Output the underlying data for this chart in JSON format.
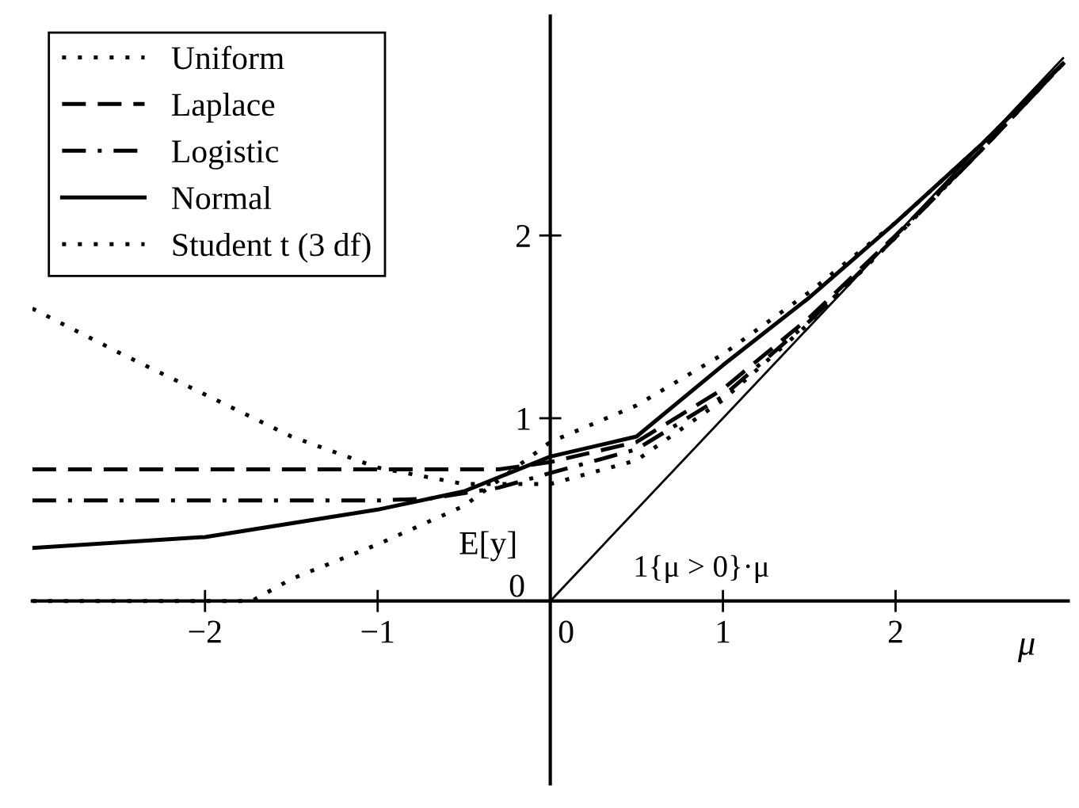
{
  "chart_data": {
    "type": "line",
    "xlabel": "μ",
    "ylabel": "E[y]",
    "xlim": [
      -3,
      3
    ],
    "ylim": [
      -1,
      3.2
    ],
    "xticks": [
      -2,
      -1,
      0,
      1,
      2
    ],
    "yticks": [
      0,
      1,
      2
    ],
    "grid": false,
    "legend": "top left",
    "marker": "none",
    "series": [
      {
        "name": "Uniform",
        "color": "#000000",
        "line_style": "dotted",
        "x": [
          -3,
          -1.73,
          -1.5,
          -1,
          -0.5,
          0,
          0.5,
          1,
          1.5,
          2,
          2.5,
          2.97
        ],
        "values": [
          0,
          0,
          0.12,
          0.31,
          0.52,
          0.87,
          1.07,
          1.35,
          1.69,
          2.07,
          2.5,
          2.94
        ]
      },
      {
        "name": "Laplace",
        "color": "#000000",
        "line_style": "dashed",
        "x": [
          -3,
          -1,
          -0.5,
          -0.3,
          0,
          0.5,
          1,
          1.5,
          2,
          2.5,
          2.97
        ],
        "values": [
          0.72,
          0.72,
          0.72,
          0.72,
          0.76,
          0.87,
          1.16,
          1.55,
          2.0,
          2.47,
          2.94
        ]
      },
      {
        "name": "Logistic",
        "color": "#000000",
        "line_style": "dashdot",
        "x": [
          -3,
          -1,
          -0.7,
          -0.3,
          0,
          0.5,
          1,
          1.5,
          2,
          2.5,
          2.97
        ],
        "values": [
          0.55,
          0.55,
          0.56,
          0.62,
          0.7,
          0.83,
          1.12,
          1.53,
          1.99,
          2.47,
          2.94
        ]
      },
      {
        "name": "Normal",
        "color": "#000000",
        "line_style": "solid",
        "x": [
          -3,
          -2,
          -1,
          -0.5,
          0,
          0.5,
          1,
          1.5,
          2,
          2.5,
          2.97
        ],
        "values": [
          0.29,
          0.35,
          0.5,
          0.6,
          0.79,
          0.9,
          1.29,
          1.66,
          2.07,
          2.5,
          2.94
        ]
      },
      {
        "name": "Student t (3 df)",
        "color": "#000000",
        "line_style": "dotted",
        "x": [
          -3,
          -2.5,
          -2,
          -1.5,
          -1,
          -0.5,
          0,
          0.5,
          1,
          1.5,
          2,
          2.5,
          2.97
        ],
        "values": [
          1.6,
          1.36,
          1.13,
          0.9,
          0.73,
          0.64,
          0.64,
          0.77,
          1.1,
          1.52,
          1.99,
          2.47,
          2.94
        ]
      },
      {
        "color": "#000000",
        "line_style": "solid",
        "x": [
          -3,
          0,
          2.97
        ],
        "values": [
          0,
          0,
          2.97
        ]
      }
    ],
    "annotations": [
      "1{μ > 0}·μ"
    ]
  }
}
